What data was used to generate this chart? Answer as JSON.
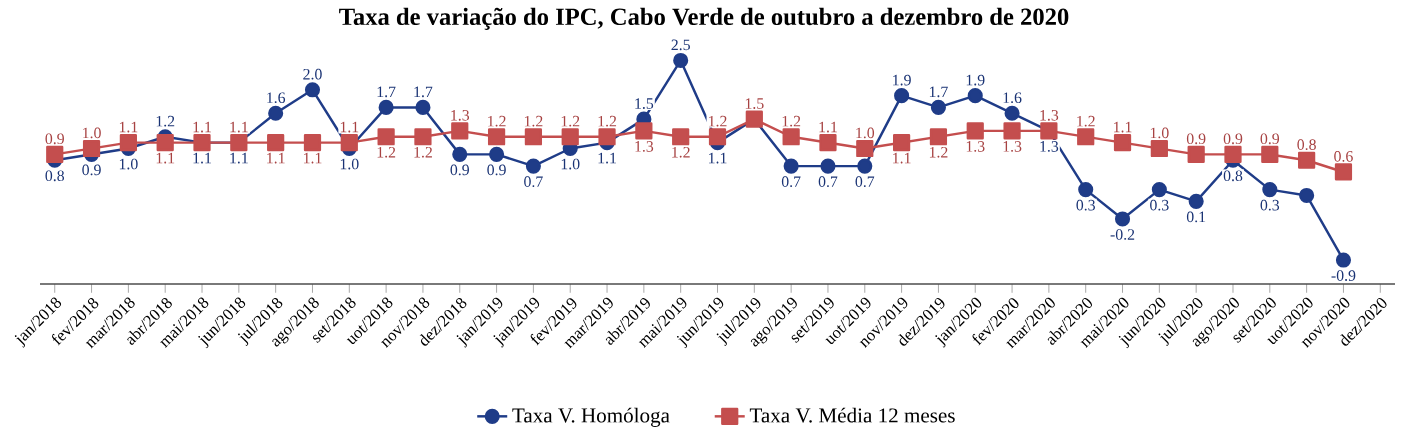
{
  "chart_data": {
    "type": "line",
    "title": "Taxa de variação do IPC, Cabo Verde de outubro a dezembro de 2020",
    "categories": [
      "jan/2018",
      "fev/2018",
      "mar/2018",
      "abr/2018",
      "mai/2018",
      "jun/2018",
      "jul/2018",
      "ago/2018",
      "set/2018",
      "uot/2018",
      "nov/2018",
      "dez/2018",
      "jan/2019",
      "jan/2019",
      "fev/2019",
      "mar/2019",
      "abr/2019",
      "mai/2019",
      "jun/2019",
      "jul/2019",
      "ago/2019",
      "set/2019",
      "uot/2019",
      "nov/2019",
      "dez/2019",
      "jan/2020",
      "fev/2020",
      "mar/2020",
      "abr/2020",
      "mai/2020",
      "jun/2020",
      "jul/2020",
      "ago/2020",
      "set/2020",
      "uot/2020",
      "nov/2020",
      "dez/2020"
    ],
    "series": [
      {
        "name": "Taxa V. Homóloga",
        "color": "#1f3c88",
        "marker": "circle",
        "values": [
          0.8,
          0.9,
          1.0,
          1.2,
          1.1,
          1.1,
          1.6,
          2.0,
          1.0,
          1.7,
          1.7,
          0.9,
          0.9,
          0.7,
          1.0,
          1.1,
          1.5,
          2.5,
          1.1,
          1.5,
          0.7,
          0.7,
          0.7,
          1.9,
          1.7,
          1.9,
          1.6,
          1.3,
          0.3,
          -0.2,
          0.3,
          0.1,
          0.8,
          0.3,
          0.2,
          -0.9,
          null
        ],
        "value_labels": [
          "0.8",
          "0.9",
          "1.0",
          "1.2",
          "1.1",
          "1.1",
          "1.6",
          "2.0",
          "1.0",
          "1.7",
          "1.7",
          "0.9",
          "0.9",
          "0.7",
          "1.0",
          "1.1",
          "1.5",
          "2.5",
          "1.1",
          null,
          "0.7",
          "0.7",
          "0.7",
          "1.9",
          "1.7",
          "1.9",
          "1.6",
          "1.3",
          "0.3",
          "-0.2",
          "0.3",
          "0.1",
          "0.8",
          "0.3",
          null,
          "-0.9",
          null
        ]
      },
      {
        "name": "Taxa V. Média 12 meses",
        "color": "#c44e4e",
        "marker": "square",
        "values": [
          0.9,
          1.0,
          1.1,
          1.1,
          1.1,
          1.1,
          1.1,
          1.1,
          1.1,
          1.2,
          1.2,
          1.3,
          1.2,
          1.2,
          1.2,
          1.2,
          1.3,
          1.2,
          1.2,
          1.5,
          1.2,
          1.1,
          1.0,
          1.1,
          1.2,
          1.3,
          1.3,
          1.3,
          1.2,
          1.1,
          1.0,
          0.9,
          0.9,
          0.9,
          0.8,
          0.6,
          null
        ],
        "value_labels": [
          "0.9",
          "1.0",
          "1.1",
          "1.1",
          "1.1",
          "1.1",
          "1.1",
          "1.1",
          "1.1",
          "1.2",
          "1.2",
          "1.3",
          "1.2",
          "1.2",
          "1.2",
          "1.2",
          "1.3",
          "1.2",
          "1.2",
          "1.5",
          "1.2",
          "1.1",
          "1.0",
          "1.1",
          "1.2",
          "1.3",
          "1.3",
          "1.3",
          "1.2",
          "1.1",
          "1.0",
          "0.9",
          "0.9",
          "0.9",
          "0.8",
          "0.6",
          null
        ]
      }
    ],
    "legend": "bottom",
    "tick_labels": "x"
  }
}
